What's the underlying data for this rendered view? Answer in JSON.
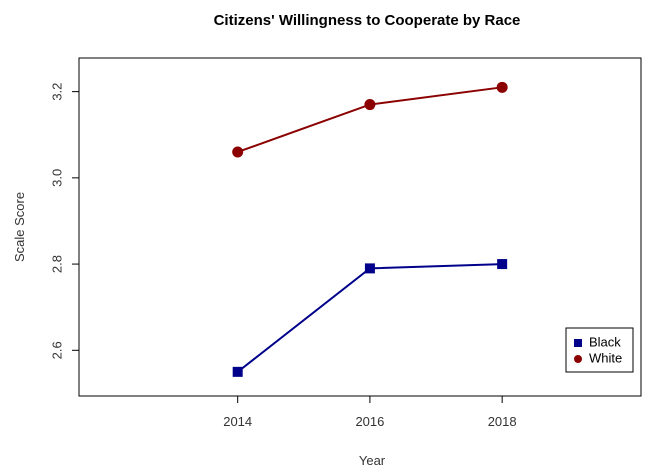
{
  "chart_data": {
    "type": "line",
    "title": "Citizens' Willingness to Cooperate by Race",
    "xlabel": "Year",
    "ylabel": "Scale Score",
    "x": [
      2014,
      2016,
      2018
    ],
    "x_tick_labels": [
      "2014",
      "2016",
      "2018"
    ],
    "xlim": [
      2011.6,
      2020.1
    ],
    "y_ticks": [
      2.6,
      2.8,
      3.0,
      3.2
    ],
    "y_tick_labels": [
      "2.6",
      "2.8",
      "3.0",
      "3.2"
    ],
    "ylim": [
      2.494,
      3.278
    ],
    "grid": false,
    "legend_position": "bottom-right",
    "series": [
      {
        "name": "Black",
        "values": [
          2.55,
          2.79,
          2.8
        ],
        "color": "#00008B",
        "marker": "square"
      },
      {
        "name": "White",
        "values": [
          3.06,
          3.17,
          3.21
        ],
        "color": "#8B0000",
        "marker": "circle"
      }
    ]
  }
}
